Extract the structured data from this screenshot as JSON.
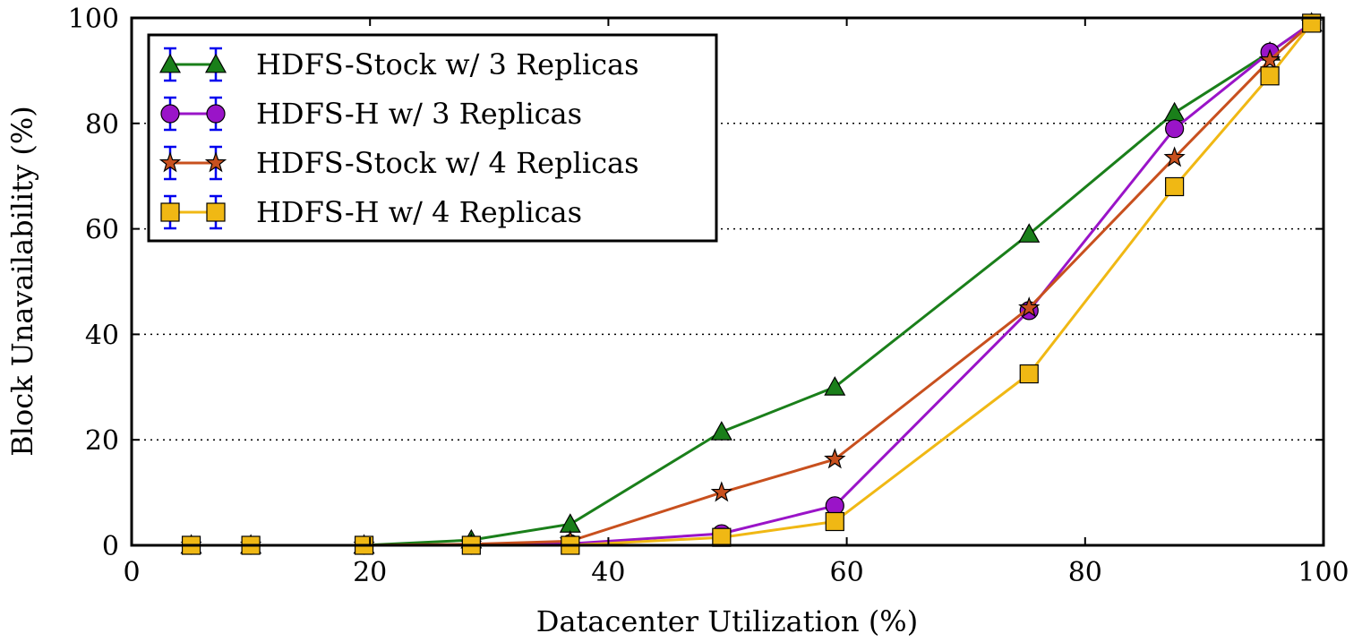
{
  "chart_data": {
    "type": "line",
    "title": "",
    "xlabel": "Datacenter Utilization (%)",
    "ylabel": "Block Unavailability (%)",
    "xlim": [
      0,
      100
    ],
    "ylim": [
      0,
      100
    ],
    "xticks": [
      0,
      20,
      40,
      60,
      80,
      100
    ],
    "yticks": [
      0,
      20,
      40,
      60,
      80,
      100
    ],
    "grid": "horizontal dotted",
    "legend_position": "top-left",
    "series": [
      {
        "name": "HDFS-Stock w/ 3 Replicas",
        "color": "#1a7f1a",
        "marker": "triangle",
        "x": [
          5,
          10,
          19.5,
          28.5,
          36.8,
          49.5,
          59,
          75.3,
          87.5,
          95.5,
          99
        ],
        "y": [
          0,
          0,
          0,
          1,
          4,
          21.5,
          30,
          59,
          82,
          93.5,
          99
        ]
      },
      {
        "name": "HDFS-H w/ 3 Replicas",
        "color": "#9a14c8",
        "marker": "circle",
        "x": [
          5,
          10,
          19.5,
          28.5,
          36.8,
          49.5,
          59,
          75.3,
          87.5,
          95.5,
          99
        ],
        "y": [
          0,
          0,
          0,
          0,
          0.3,
          2.2,
          7.5,
          44.5,
          79,
          93.5,
          99
        ]
      },
      {
        "name": "HDFS-Stock w/ 4 Replicas",
        "color": "#c8501e",
        "marker": "star",
        "x": [
          5,
          10,
          19.5,
          28.5,
          36.8,
          49.5,
          59,
          75.3,
          87.5,
          95.5,
          99
        ],
        "y": [
          0,
          0,
          0,
          0.2,
          0.8,
          10,
          16.3,
          45,
          73.5,
          92,
          99
        ]
      },
      {
        "name": "HDFS-H w/ 4 Replicas",
        "color": "#f0b814",
        "marker": "square",
        "x": [
          5,
          10,
          19.5,
          28.5,
          36.8,
          49.5,
          59,
          75.3,
          87.5,
          95.5,
          99
        ],
        "y": [
          0,
          0,
          0,
          0,
          0,
          1.5,
          4.5,
          32.5,
          68,
          89,
          99
        ]
      }
    ],
    "errorbar_color": "#0000ee"
  }
}
